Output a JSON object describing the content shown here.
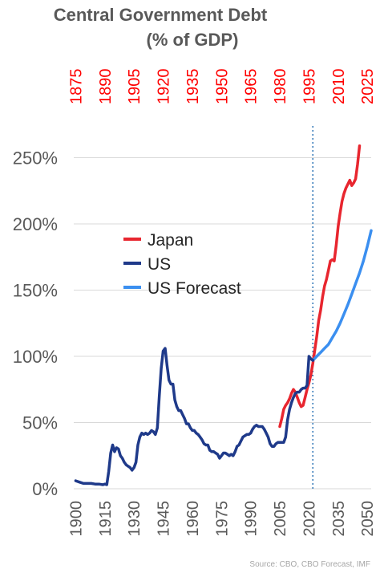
{
  "chart_data": {
    "type": "line",
    "title_lines": [
      "Central Government Debt",
      "(% of GDP)"
    ],
    "source": "Source: CBO, CBO Forecast, IMF",
    "ylim": [
      0,
      2.6
    ],
    "yticks": [
      {
        "value": 0,
        "label": "0%"
      },
      {
        "value": 0.5,
        "label": "50%"
      },
      {
        "value": 1.0,
        "label": "100%"
      },
      {
        "value": 1.5,
        "label": "150%"
      },
      {
        "value": 2.0,
        "label": "200%"
      },
      {
        "value": 2.5,
        "label": "250%"
      }
    ],
    "x_bottom": {
      "range": [
        1899,
        2052
      ],
      "ticks": [
        1900,
        1915,
        1930,
        1945,
        1960,
        1975,
        1990,
        2005,
        2020,
        2035,
        2050
      ],
      "labels": [
        "1900",
        "1915",
        "1930",
        "1945",
        "1960",
        "1975",
        "1990",
        "2005",
        "2020",
        "2035",
        "2050"
      ]
    },
    "x_top": {
      "range": [
        1874,
        2027
      ],
      "ticks": [
        1875,
        1890,
        1905,
        1920,
        1935,
        1950,
        1965,
        1980,
        1995,
        2010,
        2025
      ],
      "labels": [
        "1875",
        "1890",
        "1905",
        "1920",
        "1935",
        "1950",
        "1965",
        "1980",
        "1995",
        "2010",
        "2025"
      ],
      "color": "#ff0000"
    },
    "grid": "horizontal",
    "divider_year": 2022,
    "legend": {
      "placement": "middle-left"
    },
    "series": [
      {
        "name": "Japan",
        "axis": "top",
        "color": "#e8262f",
        "x": [
          1980,
          1981,
          1982,
          1983,
          1984,
          1985,
          1986,
          1987,
          1988,
          1989,
          1990,
          1991,
          1992,
          1993,
          1994,
          1995,
          1996,
          1997,
          1998,
          1999,
          2000,
          2001,
          2002,
          2003,
          2004,
          2005,
          2006,
          2007,
          2008,
          2009,
          2010,
          2011,
          2012,
          2013,
          2014,
          2015,
          2016,
          2017,
          2018,
          2019,
          2020,
          2021
        ],
        "y": [
          0.47,
          0.53,
          0.6,
          0.63,
          0.65,
          0.68,
          0.72,
          0.75,
          0.73,
          0.69,
          0.65,
          0.62,
          0.63,
          0.69,
          0.75,
          0.8,
          0.86,
          0.95,
          1.05,
          1.15,
          1.27,
          1.35,
          1.45,
          1.53,
          1.58,
          1.65,
          1.72,
          1.73,
          1.72,
          1.84,
          1.98,
          2.08,
          2.17,
          2.23,
          2.27,
          2.3,
          2.33,
          2.29,
          2.31,
          2.34,
          2.45,
          2.59
        ]
      },
      {
        "name": "US",
        "axis": "bottom",
        "color": "#1f3a8a",
        "x": [
          1900,
          1902,
          1904,
          1906,
          1908,
          1910,
          1912,
          1914,
          1915,
          1916,
          1917,
          1918,
          1919,
          1920,
          1921,
          1922,
          1923,
          1924,
          1925,
          1926,
          1927,
          1928,
          1929,
          1930,
          1931,
          1932,
          1933,
          1934,
          1935,
          1936,
          1937,
          1938,
          1939,
          1940,
          1941,
          1942,
          1943,
          1944,
          1945,
          1946,
          1947,
          1948,
          1949,
          1950,
          1951,
          1952,
          1953,
          1954,
          1955,
          1956,
          1957,
          1958,
          1959,
          1960,
          1961,
          1962,
          1963,
          1964,
          1965,
          1966,
          1967,
          1968,
          1969,
          1970,
          1971,
          1972,
          1973,
          1974,
          1975,
          1976,
          1977,
          1978,
          1979,
          1980,
          1981,
          1982,
          1983,
          1984,
          1985,
          1986,
          1987,
          1988,
          1989,
          1990,
          1991,
          1992,
          1993,
          1994,
          1995,
          1996,
          1997,
          1998,
          1999,
          2000,
          2001,
          2002,
          2003,
          2004,
          2005,
          2006,
          2007,
          2008,
          2009,
          2010,
          2011,
          2012,
          2013,
          2014,
          2015,
          2016,
          2017,
          2018,
          2019,
          2020,
          2021,
          2022
        ],
        "y": [
          0.06,
          0.05,
          0.04,
          0.04,
          0.04,
          0.035,
          0.035,
          0.03,
          0.035,
          0.03,
          0.13,
          0.27,
          0.33,
          0.28,
          0.31,
          0.3,
          0.25,
          0.23,
          0.2,
          0.18,
          0.17,
          0.16,
          0.14,
          0.16,
          0.2,
          0.33,
          0.39,
          0.42,
          0.41,
          0.42,
          0.41,
          0.42,
          0.44,
          0.43,
          0.41,
          0.46,
          0.7,
          0.91,
          1.04,
          1.06,
          0.93,
          0.82,
          0.79,
          0.79,
          0.67,
          0.62,
          0.59,
          0.59,
          0.56,
          0.53,
          0.49,
          0.49,
          0.46,
          0.44,
          0.44,
          0.42,
          0.41,
          0.39,
          0.37,
          0.34,
          0.33,
          0.33,
          0.29,
          0.28,
          0.28,
          0.27,
          0.26,
          0.23,
          0.25,
          0.27,
          0.27,
          0.26,
          0.25,
          0.26,
          0.25,
          0.28,
          0.32,
          0.33,
          0.36,
          0.39,
          0.4,
          0.41,
          0.41,
          0.42,
          0.45,
          0.47,
          0.48,
          0.47,
          0.47,
          0.47,
          0.45,
          0.42,
          0.39,
          0.34,
          0.32,
          0.32,
          0.34,
          0.35,
          0.35,
          0.35,
          0.35,
          0.39,
          0.52,
          0.6,
          0.65,
          0.69,
          0.72,
          0.73,
          0.73,
          0.75,
          0.76,
          0.76,
          0.78,
          1.0,
          0.98,
          0.97
        ]
      },
      {
        "name": "US Forecast",
        "axis": "bottom",
        "color": "#3b8ff0",
        "x": [
          2022,
          2024,
          2026,
          2028,
          2030,
          2032,
          2034,
          2036,
          2038,
          2040,
          2042,
          2044,
          2046,
          2048,
          2050,
          2052
        ],
        "y": [
          0.97,
          1.0,
          1.03,
          1.06,
          1.09,
          1.14,
          1.19,
          1.25,
          1.32,
          1.39,
          1.47,
          1.55,
          1.63,
          1.72,
          1.83,
          1.95
        ]
      }
    ]
  }
}
